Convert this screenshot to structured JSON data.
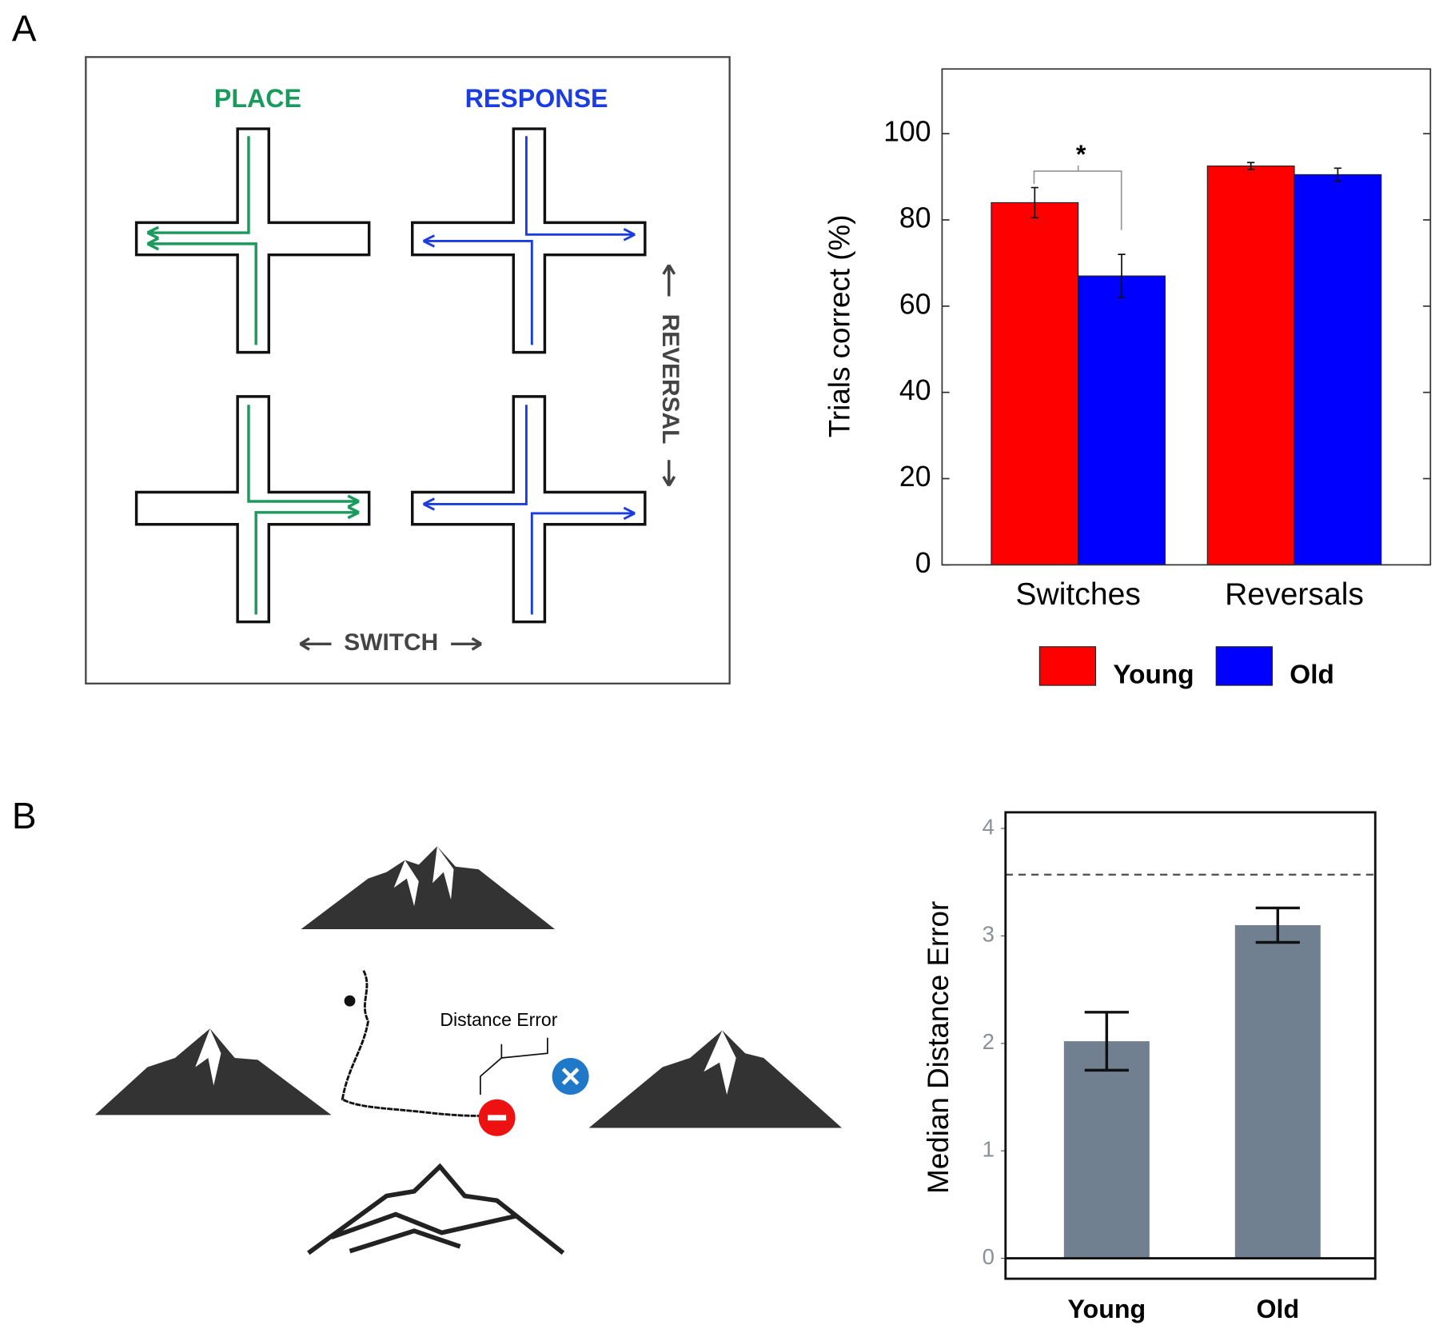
{
  "figure": {
    "panel_labels": [
      "A",
      "B"
    ],
    "maze": {
      "place": "PLACE",
      "response": "RESPONSE",
      "reversal": "REVERSAL",
      "switch": "SWITCH"
    },
    "navigation": {
      "label": "Distance Error"
    }
  },
  "chart_data": [
    {
      "type": "grouped_bar",
      "y_label": "Trials correct (%)",
      "categories": [
        "Switches",
        "Reversals"
      ],
      "series": [
        {
          "name": "Young",
          "color": "#ff0000",
          "values": [
            84,
            92.5
          ],
          "errors": [
            3.5,
            0.8
          ]
        },
        {
          "name": "Old",
          "color": "#0000ff",
          "values": [
            67,
            90.5
          ],
          "errors": [
            5,
            1.5
          ]
        }
      ],
      "ylim": [
        0,
        115
      ],
      "yticks": [
        0,
        20,
        40,
        60,
        80,
        100
      ],
      "annotation": "*",
      "legend": "bottom"
    },
    {
      "type": "bar",
      "y_label": "Median Distance Error",
      "categories": [
        "Young",
        "Old"
      ],
      "values": [
        2.02,
        3.1
      ],
      "errors": [
        0.27,
        0.16
      ],
      "color": "#708090",
      "ylim": [
        -0.19,
        4.15
      ],
      "yticks": [
        0,
        1,
        2,
        3,
        4
      ],
      "reference_line": 3.57
    }
  ]
}
